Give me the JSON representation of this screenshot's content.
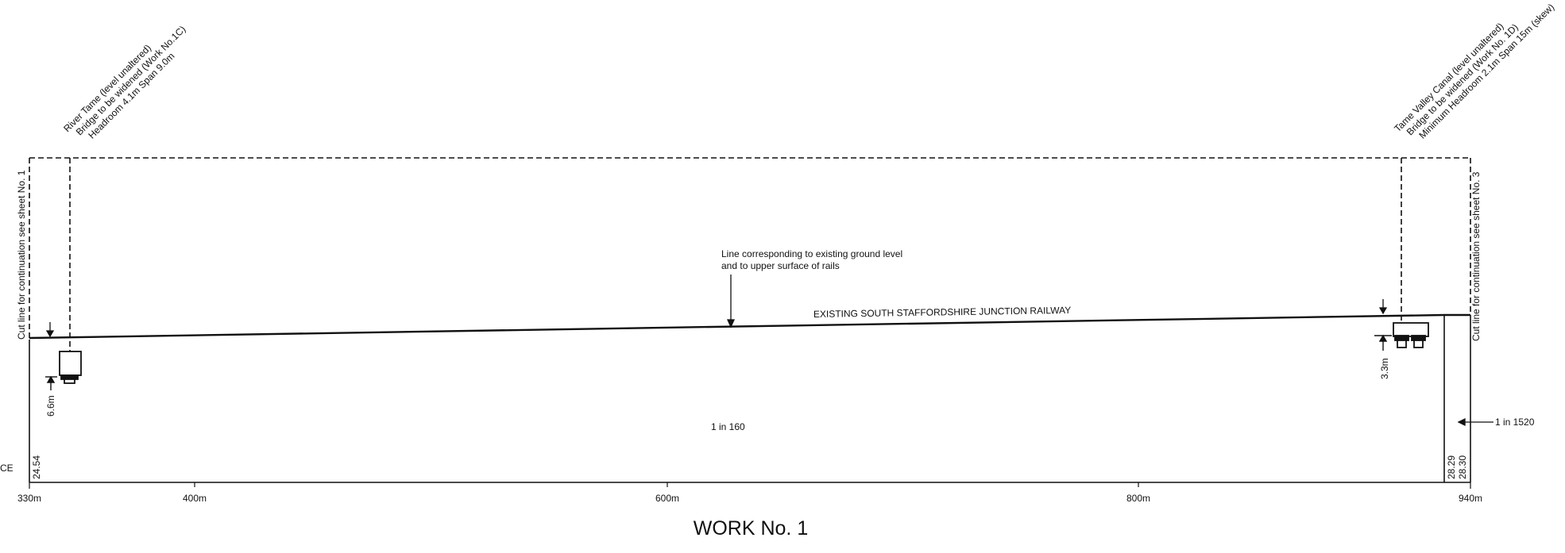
{
  "title": "WORK No. 1",
  "railway_label": "EXISTING SOUTH STAFFORDSHIRE JUNCTION RAILWAY",
  "ground_note": {
    "line1": "Line corresponding to existing ground level",
    "line2": "and to upper surface of rails"
  },
  "gradients": {
    "main": "1 in 160",
    "end": "1 in 1520"
  },
  "left_bridge": {
    "line1": "River Tame (level unaltered)",
    "line2": "Bridge to be widened (Work No.1C)",
    "line3": "Headroom 4.1m Span 9.0m",
    "clearance": "6.6m"
  },
  "right_bridge": {
    "line1": "Tame Valley Canal (level unaltered)",
    "line2": "Bridge to be widened (Work No. 1D)",
    "line3": "Minimum Headroom 2.1m Span 15m (skew)",
    "clearance": "3.3m"
  },
  "cut_lines": {
    "left": "Cut line for continuation see sheet No. 1",
    "right": "Cut line for continuation see sheet No. 3"
  },
  "levels": {
    "left": "24.54",
    "right_a": "28.29",
    "right_b": "28.30"
  },
  "datum_fragment": "CE",
  "chainage": [
    "330m",
    "400m",
    "600m",
    "800m",
    "940m"
  ]
}
